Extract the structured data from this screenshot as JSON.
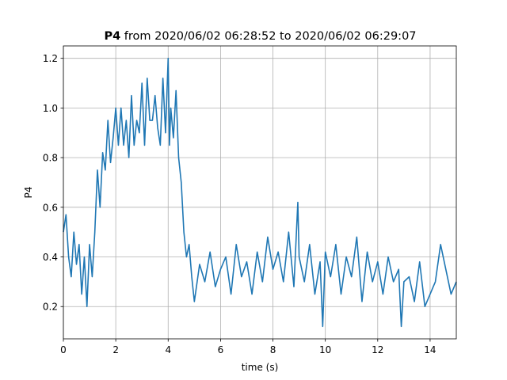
{
  "chart_data": {
    "type": "line",
    "title_bold": "P4",
    "title_rest": " from 2020/06/02 06:28:52 to 2020/06/02 06:29:07",
    "xlabel": "time (s)",
    "ylabel": "P4",
    "xlim": [
      0,
      15
    ],
    "ylim": [
      0.07,
      1.25
    ],
    "xticks": [
      0,
      2,
      4,
      6,
      8,
      10,
      12,
      14
    ],
    "yticks": [
      0.2,
      0.4,
      0.6,
      0.8,
      1.0,
      1.2
    ],
    "xtick_labels": [
      "0",
      "2",
      "4",
      "6",
      "8",
      "10",
      "12",
      "14"
    ],
    "ytick_labels": [
      "0.2",
      "0.4",
      "0.6",
      "0.8",
      "1.0",
      "1.2"
    ],
    "grid": true,
    "line_color": "#1f77b4",
    "series": [
      {
        "x": [
          0,
          0.1,
          0.2,
          0.3,
          0.4,
          0.5,
          0.6,
          0.7,
          0.8,
          0.9,
          1.0,
          1.1,
          1.2,
          1.3,
          1.4,
          1.5,
          1.6,
          1.7,
          1.8,
          1.9,
          2.0,
          2.1,
          2.2,
          2.3,
          2.4,
          2.5,
          2.6,
          2.7,
          2.8,
          2.9,
          3.0,
          3.1,
          3.2,
          3.3,
          3.4,
          3.5,
          3.6,
          3.7,
          3.8,
          3.9,
          4.0,
          4.05,
          4.1,
          4.2,
          4.3,
          4.4,
          4.5,
          4.6,
          4.7,
          4.8,
          4.9,
          5.0,
          5.2,
          5.4,
          5.6,
          5.8,
          6.0,
          6.2,
          6.4,
          6.6,
          6.8,
          7.0,
          7.2,
          7.4,
          7.6,
          7.8,
          8.0,
          8.2,
          8.4,
          8.6,
          8.8,
          8.95,
          9.0,
          9.2,
          9.4,
          9.6,
          9.8,
          9.9,
          10.0,
          10.2,
          10.4,
          10.6,
          10.8,
          11.0,
          11.2,
          11.4,
          11.6,
          11.8,
          12.0,
          12.2,
          12.4,
          12.6,
          12.8,
          12.9,
          13.0,
          13.2,
          13.4,
          13.6,
          13.8,
          14.0,
          14.2,
          14.4,
          14.6,
          14.8,
          15.0
        ],
        "y": [
          0.5,
          0.57,
          0.4,
          0.32,
          0.5,
          0.37,
          0.45,
          0.25,
          0.4,
          0.2,
          0.45,
          0.32,
          0.5,
          0.75,
          0.6,
          0.82,
          0.75,
          0.95,
          0.78,
          0.88,
          1.0,
          0.85,
          1.0,
          0.85,
          0.95,
          0.8,
          1.05,
          0.85,
          0.95,
          0.9,
          1.1,
          0.85,
          1.12,
          0.95,
          0.95,
          1.05,
          0.92,
          0.85,
          1.12,
          0.9,
          1.2,
          0.85,
          1.0,
          0.88,
          1.07,
          0.8,
          0.7,
          0.5,
          0.4,
          0.45,
          0.32,
          0.22,
          0.37,
          0.3,
          0.42,
          0.28,
          0.35,
          0.4,
          0.25,
          0.45,
          0.32,
          0.38,
          0.25,
          0.42,
          0.3,
          0.48,
          0.35,
          0.42,
          0.3,
          0.5,
          0.28,
          0.62,
          0.4,
          0.3,
          0.45,
          0.25,
          0.38,
          0.12,
          0.42,
          0.32,
          0.45,
          0.25,
          0.4,
          0.32,
          0.48,
          0.22,
          0.42,
          0.3,
          0.38,
          0.25,
          0.4,
          0.3,
          0.35,
          0.12,
          0.3,
          0.32,
          0.22,
          0.38,
          0.2,
          0.25,
          0.3,
          0.45,
          0.35,
          0.25,
          0.3
        ]
      }
    ]
  }
}
